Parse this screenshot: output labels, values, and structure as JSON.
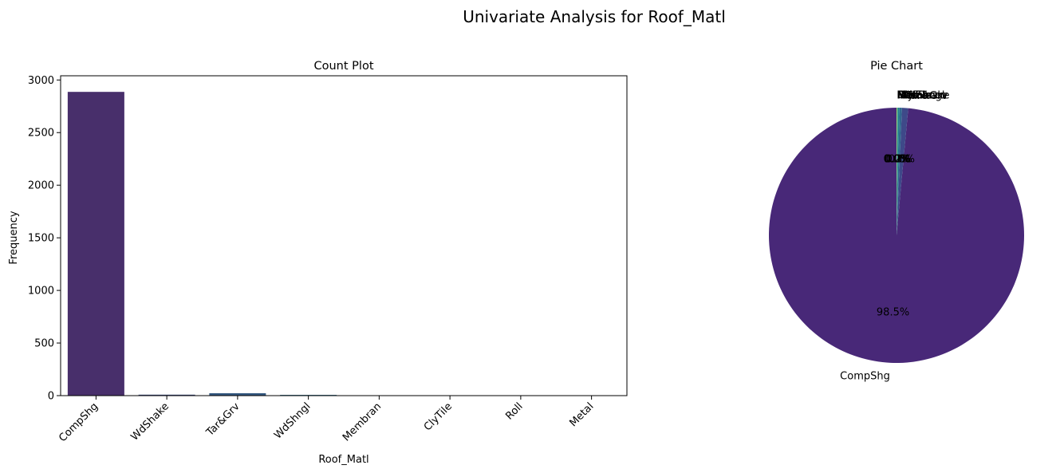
{
  "figure": {
    "suptitle": "Univariate Analysis for Roof_Matl"
  },
  "chart_data": [
    {
      "type": "bar",
      "title": "Count Plot",
      "xlabel": "Roof_Matl",
      "ylabel": "Frequency",
      "categories": [
        "CompShg",
        "WdShake",
        "Tar&Grv",
        "WdShngl",
        "Membran",
        "ClyTile",
        "Roll",
        "Metal"
      ],
      "values": [
        2887,
        9,
        23,
        7,
        1,
        1,
        1,
        1
      ],
      "ylim": [
        0,
        3040
      ],
      "yticks": [
        0,
        500,
        1000,
        1500,
        2000,
        2500,
        3000
      ],
      "grid": false,
      "colors": [
        "#482f6b",
        "#3d4a7a",
        "#34587f",
        "#2d6a85",
        "#27818b",
        "#2a9a86",
        "#3eb474",
        "#70c95a"
      ]
    },
    {
      "type": "pie",
      "title": "Pie Chart",
      "labels": [
        "CompShg",
        "Tar&Grv",
        "WdShake",
        "WdShngl",
        "Membran",
        "ClyTile",
        "Roll",
        "Metal"
      ],
      "values": [
        2887,
        23,
        9,
        7,
        1,
        1,
        1,
        1
      ],
      "pct_labels": [
        "98.5%",
        "0.8%",
        "0.3%",
        "0.2%",
        "0.0%",
        "0.0%",
        "0.0%",
        "0.0%"
      ],
      "colors": [
        "#482878",
        "#3e4989",
        "#31688e",
        "#26828e",
        "#1f9e89",
        "#35b779",
        "#6ece58",
        "#b5de2b"
      ]
    }
  ]
}
